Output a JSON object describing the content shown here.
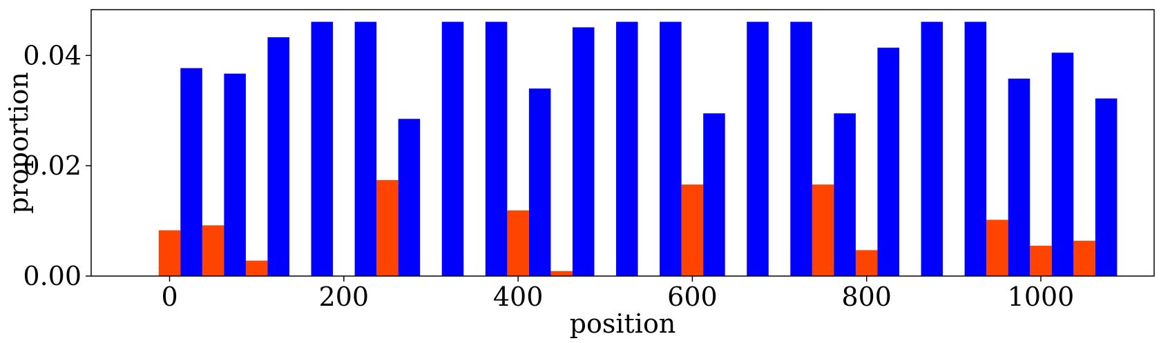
{
  "chart_data": {
    "type": "bar",
    "xlabel": "position",
    "ylabel": "proportion",
    "xlim": [
      -90,
      1130
    ],
    "ylim": [
      0,
      0.0483
    ],
    "bar_width": 25,
    "grid": false,
    "x_ticks": [
      0,
      200,
      400,
      600,
      800,
      1000
    ],
    "x_tick_labels": [
      "0",
      "200",
      "400",
      "600",
      "800",
      "1000"
    ],
    "y_ticks": [
      0.0,
      0.02,
      0.04
    ],
    "y_tick_labels": [
      "0.00",
      "0.02",
      "0.04"
    ],
    "series": [
      {
        "color": "#ff4400",
        "x": [
          0,
          50,
          100,
          250,
          400,
          450,
          600,
          750,
          800,
          950,
          1000,
          1050
        ],
        "values": [
          0.0083,
          0.0092,
          0.0028,
          0.0174,
          0.0119,
          0.0009,
          0.0166,
          0.0166,
          0.0047,
          0.0102,
          0.0055,
          0.0064
        ]
      },
      {
        "color": "#0000ff",
        "x": [
          25,
          75,
          125,
          175,
          225,
          275,
          325,
          375,
          425,
          475,
          525,
          575,
          625,
          675,
          725,
          775,
          825,
          875,
          925,
          975,
          1025,
          1075
        ],
        "values": [
          0.0377,
          0.0367,
          0.0433,
          0.0461,
          0.0461,
          0.0285,
          0.0461,
          0.0461,
          0.034,
          0.0451,
          0.0461,
          0.0461,
          0.0295,
          0.0461,
          0.0461,
          0.0295,
          0.0414,
          0.0461,
          0.0461,
          0.0358,
          0.0405,
          0.0322
        ]
      }
    ]
  }
}
